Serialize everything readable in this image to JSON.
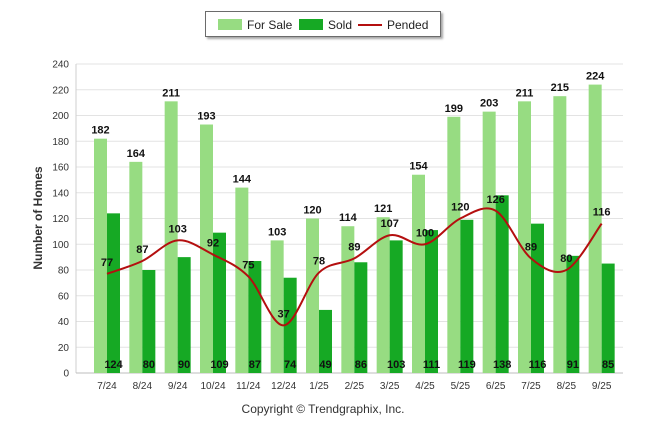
{
  "chart_data": {
    "type": "bar",
    "ylabel": "Number of Homes",
    "xlabel": "",
    "ylim": [
      0,
      240
    ],
    "yticks": [
      0,
      20,
      40,
      60,
      80,
      100,
      120,
      140,
      160,
      180,
      200,
      220,
      240
    ],
    "grid": true,
    "legend_position": "top-center",
    "categories": [
      "7/24",
      "8/24",
      "9/24",
      "10/24",
      "11/24",
      "12/24",
      "1/25",
      "2/25",
      "3/25",
      "4/25",
      "5/25",
      "6/25",
      "7/25",
      "8/25",
      "9/25"
    ],
    "series": [
      {
        "name": "For Sale",
        "type": "bar",
        "color": "#97dc82",
        "values": [
          182,
          164,
          211,
          193,
          144,
          103,
          120,
          114,
          121,
          154,
          199,
          203,
          211,
          215,
          224
        ]
      },
      {
        "name": "Sold",
        "type": "bar",
        "color": "#16a924",
        "values": [
          124,
          80,
          90,
          109,
          87,
          74,
          49,
          86,
          103,
          111,
          119,
          138,
          116,
          91,
          85
        ]
      },
      {
        "name": "Pended",
        "type": "line",
        "color": "#b40f0f",
        "values": [
          77,
          87,
          103,
          92,
          75,
          37,
          78,
          89,
          107,
          100,
          120,
          126,
          89,
          80,
          116
        ]
      }
    ],
    "footer": "Copyright © Trendgraphix, Inc."
  }
}
